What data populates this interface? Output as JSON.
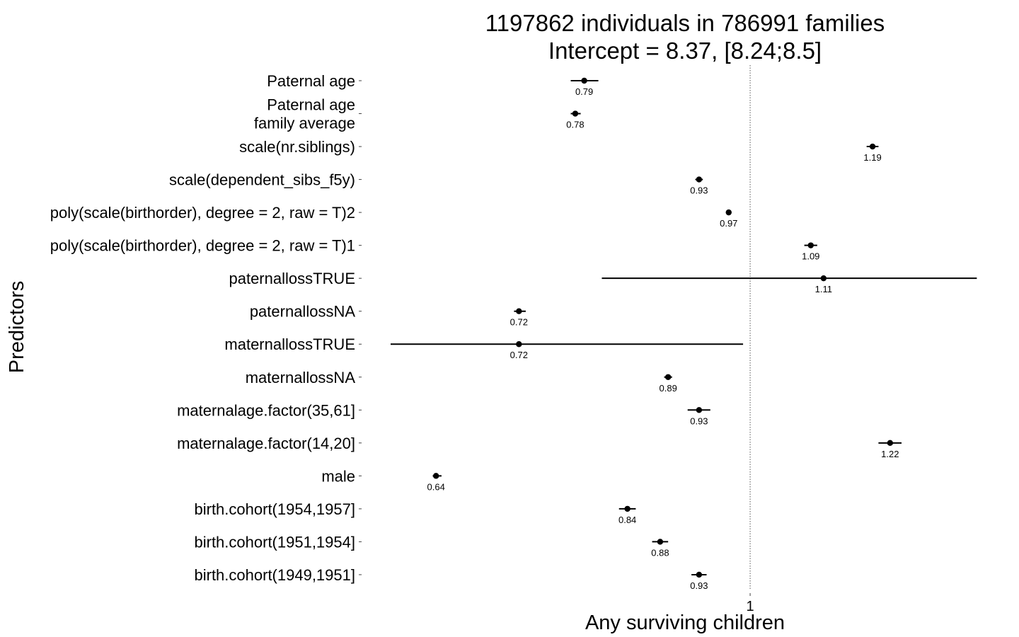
{
  "chart_data": {
    "type": "forest",
    "title_lines": [
      "1197862 individuals in 786991 families",
      "Intercept = 8.37, [8.24;8.5]"
    ],
    "xlabel": "Any surviving children",
    "ylabel": "Predictors",
    "xticks": [
      "1"
    ],
    "reference_line": 1,
    "x_scale": "log",
    "xlim": [
      0.6,
      1.385
    ],
    "grid": false,
    "rows": [
      {
        "label_lines": [
          "Paternal age"
        ],
        "estimate": 0.79,
        "ci": [
          0.775,
          0.806
        ],
        "value_label": "0.79"
      },
      {
        "label_lines": [
          "Paternal age",
          "family average"
        ],
        "estimate": 0.78,
        "ci": [
          0.775,
          0.786
        ],
        "value_label": "0.78"
      },
      {
        "label_lines": [
          "scale(nr.siblings)"
        ],
        "estimate": 1.19,
        "ci": [
          1.18,
          1.2
        ],
        "value_label": "1.19"
      },
      {
        "label_lines": [
          "scale(dependent_sibs_f5y)"
        ],
        "estimate": 0.93,
        "ci": [
          0.925,
          0.935
        ],
        "value_label": "0.93"
      },
      {
        "label_lines": [
          "poly(scale(birthorder), degree = 2, raw = T)2"
        ],
        "estimate": 0.97,
        "ci": [
          0.968,
          0.973
        ],
        "value_label": "0.97"
      },
      {
        "label_lines": [
          "poly(scale(birthorder), degree = 2, raw = T)1"
        ],
        "estimate": 1.09,
        "ci": [
          1.08,
          1.1
        ],
        "value_label": "1.09"
      },
      {
        "label_lines": [
          "paternallossTRUE"
        ],
        "estimate": 1.11,
        "ci": [
          0.81,
          1.38
        ],
        "value_label": "1.11"
      },
      {
        "label_lines": [
          "paternallossNA"
        ],
        "estimate": 0.72,
        "ci": [
          0.715,
          0.727
        ],
        "value_label": "0.72"
      },
      {
        "label_lines": [
          "maternallossTRUE"
        ],
        "estimate": 0.72,
        "ci": [
          0.6,
          0.99
        ],
        "value_label": "0.72"
      },
      {
        "label_lines": [
          "maternallossNA"
        ],
        "estimate": 0.89,
        "ci": [
          0.885,
          0.895
        ],
        "value_label": "0.89"
      },
      {
        "label_lines": [
          "maternalage.factor(35,61]"
        ],
        "estimate": 0.93,
        "ci": [
          0.915,
          0.945
        ],
        "value_label": "0.93"
      },
      {
        "label_lines": [
          "maternalage.factor(14,20]"
        ],
        "estimate": 1.22,
        "ci": [
          1.2,
          1.24
        ],
        "value_label": "1.22"
      },
      {
        "label_lines": [
          "male"
        ],
        "estimate": 0.64,
        "ci": [
          0.637,
          0.645
        ],
        "value_label": "0.64"
      },
      {
        "label_lines": [
          "birth.cohort(1954,1957]"
        ],
        "estimate": 0.84,
        "ci": [
          0.83,
          0.85
        ],
        "value_label": "0.84"
      },
      {
        "label_lines": [
          "birth.cohort(1951,1954]"
        ],
        "estimate": 0.88,
        "ci": [
          0.87,
          0.89
        ],
        "value_label": "0.88"
      },
      {
        "label_lines": [
          "birth.cohort(1949,1951]"
        ],
        "estimate": 0.93,
        "ci": [
          0.92,
          0.94
        ],
        "value_label": "0.93"
      }
    ]
  }
}
